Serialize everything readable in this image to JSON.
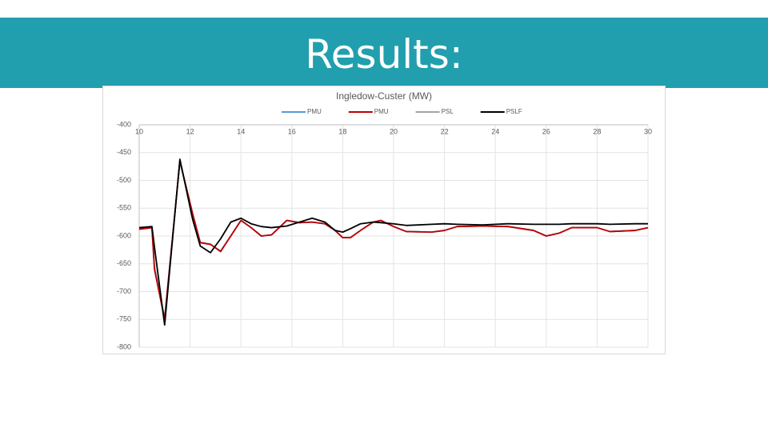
{
  "header": {
    "title": "Results:"
  },
  "chart_data": {
    "type": "line",
    "title": "Ingledow-Custer (MW)",
    "x": [
      10,
      10.5,
      10.6,
      11.0,
      11.6,
      12.1,
      12.4,
      12.8,
      13.2,
      13.6,
      14,
      14.4,
      14.8,
      15.2,
      15.8,
      16.3,
      16.8,
      17.3,
      17.7,
      18,
      18.3,
      18.7,
      19.2,
      19.5,
      20,
      20.5,
      21.5,
      22,
      22.5,
      23.5,
      24.5,
      25.5,
      26,
      26.5,
      27,
      28,
      28.5,
      29.5,
      30
    ],
    "series": [
      {
        "name": "PSL",
        "color": "#a5a5a5",
        "values": [
          -587,
          -585,
          -655,
          -748,
          -466,
          -560,
          -611,
          -615,
          -627,
          -600,
          -572,
          -585,
          -600,
          -598,
          -572,
          -576,
          -575,
          -578,
          -590,
          -603,
          -603,
          -590,
          -575,
          -572,
          -583,
          -592,
          -593,
          -590,
          -583,
          -582,
          -583,
          -590,
          -600,
          -595,
          -585,
          -585,
          -592,
          -590,
          -585
        ]
      },
      {
        "name": "PMU",
        "color": "#5b9bd5",
        "values": [
          -587,
          -585,
          -658,
          -749,
          -466,
          -560,
          -612,
          -615,
          -627,
          -600,
          -572,
          -585,
          -600,
          -598,
          -572,
          -576,
          -575,
          -578,
          -590,
          -603,
          -603,
          -590,
          -575,
          -572,
          -583,
          -592,
          -593,
          -590,
          -583,
          -582,
          -583,
          -590,
          -600,
          -595,
          -585,
          -585,
          -592,
          -590,
          -585
        ]
      },
      {
        "name": "PMU",
        "color": "#c00000",
        "values": [
          -588,
          -585,
          -660,
          -750,
          -465,
          -560,
          -612,
          -615,
          -628,
          -600,
          -572,
          -585,
          -600,
          -598,
          -572,
          -576,
          -575,
          -578,
          -590,
          -603,
          -603,
          -590,
          -575,
          -572,
          -583,
          -592,
          -593,
          -590,
          -583,
          -582,
          -583,
          -590,
          -600,
          -595,
          -585,
          -585,
          -592,
          -590,
          -585
        ]
      },
      {
        "name": "PSLF",
        "color": "#000000",
        "values": [
          -585,
          -583,
          -620,
          -760,
          -462,
          -570,
          -618,
          -630,
          -605,
          -575,
          -568,
          -578,
          -583,
          -585,
          -582,
          -575,
          -568,
          -575,
          -590,
          -593,
          -587,
          -578,
          -575,
          -576,
          -578,
          -581,
          -579,
          -578,
          -579,
          -580,
          -578,
          -579,
          -579,
          -579,
          -578,
          -578,
          -579,
          -578,
          -578
        ]
      }
    ],
    "legend_order": [
      1,
      2,
      0,
      3
    ],
    "xlim": [
      10,
      30
    ],
    "xticks": [
      10,
      12,
      14,
      16,
      18,
      20,
      22,
      24,
      26,
      28,
      30
    ],
    "ylim": [
      -800,
      -400
    ],
    "yticks": [
      -400,
      -450,
      -500,
      -550,
      -600,
      -650,
      -700,
      -750,
      -800
    ],
    "grid": true
  }
}
